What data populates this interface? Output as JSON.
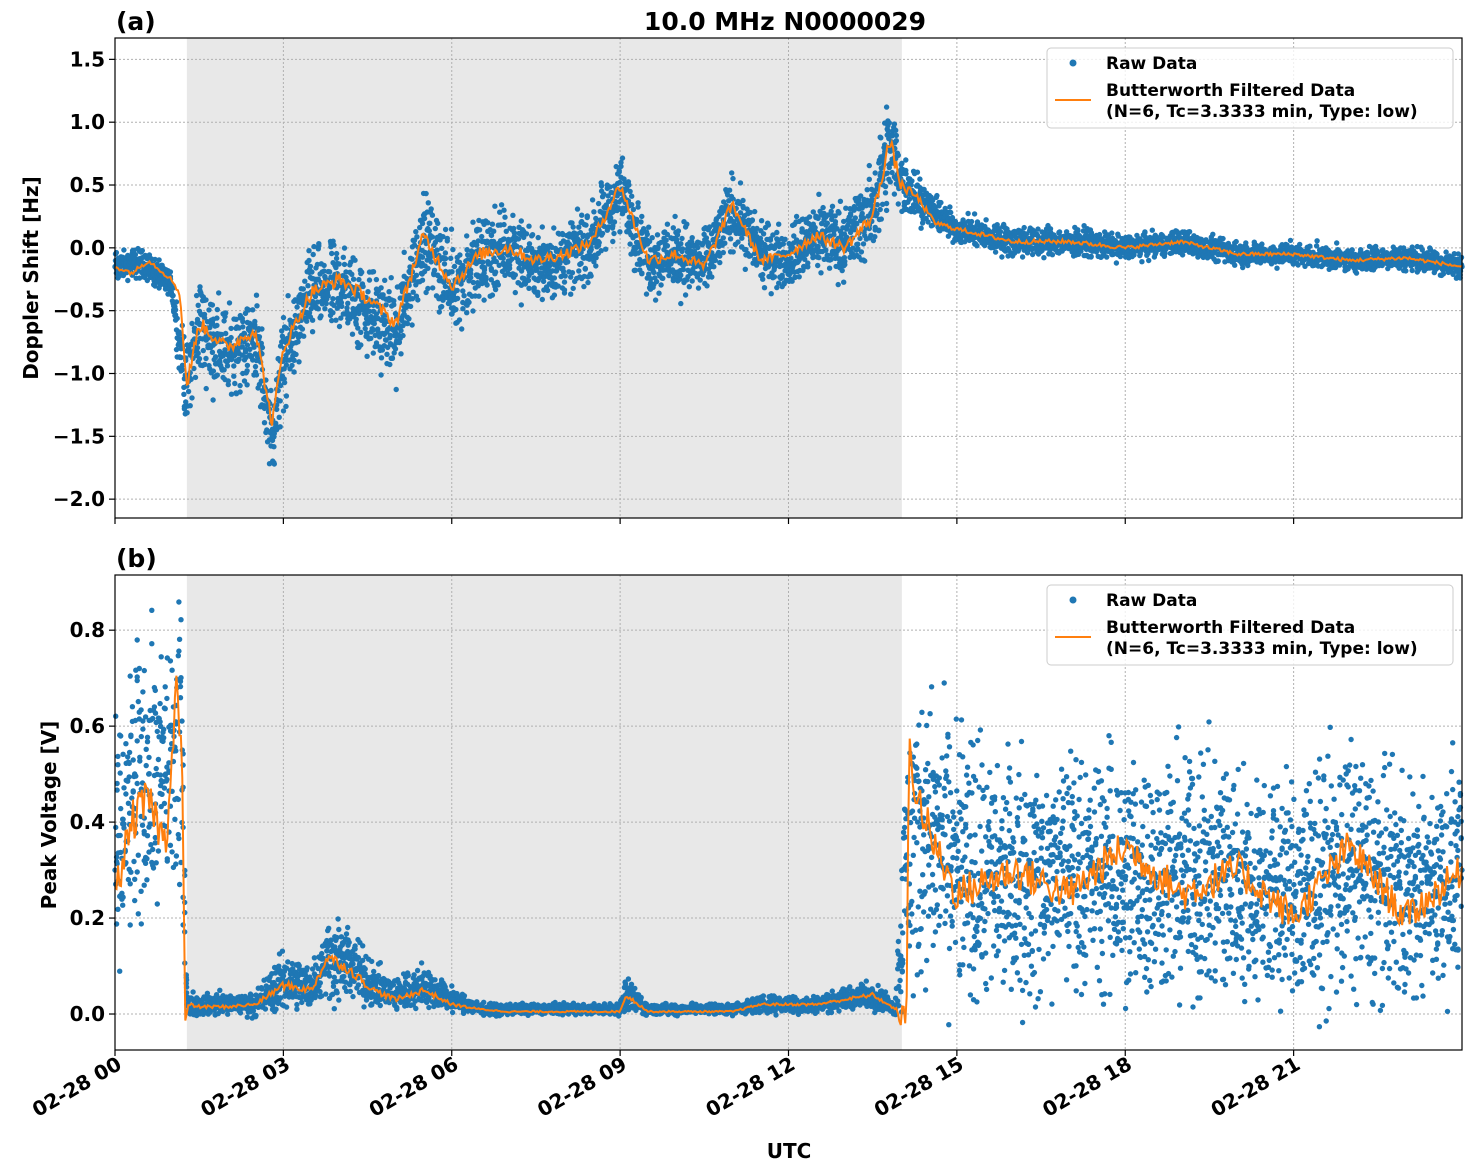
{
  "figure": {
    "suptitle": "10.0 MHz N0000029",
    "xlabel": "UTC",
    "xticks": [
      "02-28 00",
      "02-28 03",
      "02-28 06",
      "02-28 09",
      "02-28 12",
      "02-28 15",
      "02-28 18",
      "02-28 21"
    ]
  },
  "colors": {
    "raw": "#1f77b4",
    "filtered": "#ff7f0e",
    "night_shade": "#e8e8e8",
    "grid": "#b0b0b0"
  },
  "legend": {
    "raw_label": "Raw Data",
    "filtered_label_line1": "Butterworth Filtered Data",
    "filtered_label_line2": "(N=6, Tc=3.3333 min, Type: low)"
  },
  "chart_data": [
    {
      "type": "scatter",
      "panel_label": "(a)",
      "ylabel": "Doppler Shift [Hz]",
      "xlim": [
        0,
        24
      ],
      "ylim": [
        -2.15,
        1.67
      ],
      "yticks": [
        1.5,
        1.0,
        0.5,
        0.0,
        -0.5,
        -1.0,
        -1.5,
        -2.0
      ],
      "ytick_labels": [
        "1.5",
        "1.0",
        "0.5",
        "0.0",
        "−0.5",
        "−1.0",
        "−1.5",
        "−2.0"
      ],
      "shaded_interval_hours": [
        1.28,
        14.02
      ],
      "grid": true,
      "legend_position": "top-right",
      "series": [
        {
          "name": "Raw Data",
          "kind": "points",
          "x": [
            0.0,
            0.5,
            1.0,
            1.28,
            1.5,
            2.0,
            2.5,
            2.8,
            3.0,
            3.5,
            4.0,
            4.5,
            5.0,
            5.5,
            6.0,
            6.5,
            7.0,
            7.5,
            8.0,
            8.5,
            9.0,
            9.5,
            10.0,
            10.5,
            11.0,
            11.5,
            12.0,
            12.5,
            13.0,
            13.5,
            13.8,
            14.0,
            14.5,
            15.0,
            16.0,
            17.0,
            18.0,
            19.0,
            20.0,
            21.0,
            22.0,
            23.0,
            24.0
          ],
          "y": [
            -0.15,
            -0.12,
            -0.3,
            -1.1,
            -0.6,
            -0.85,
            -0.7,
            -1.5,
            -0.9,
            -0.35,
            -0.3,
            -0.5,
            -0.7,
            0.1,
            -0.3,
            -0.1,
            0.0,
            -0.15,
            -0.1,
            0.05,
            0.45,
            -0.1,
            -0.05,
            -0.15,
            0.3,
            -0.05,
            -0.1,
            0.1,
            0.05,
            0.3,
            0.8,
            0.55,
            0.3,
            0.15,
            0.05,
            0.05,
            0.0,
            0.05,
            -0.05,
            -0.05,
            -0.1,
            -0.08,
            -0.15
          ],
          "spread": [
            0.1,
            0.1,
            0.1,
            0.3,
            0.35,
            0.3,
            0.3,
            0.3,
            0.3,
            0.3,
            0.3,
            0.3,
            0.3,
            0.3,
            0.3,
            0.3,
            0.3,
            0.25,
            0.25,
            0.25,
            0.25,
            0.25,
            0.25,
            0.25,
            0.25,
            0.2,
            0.2,
            0.25,
            0.25,
            0.3,
            0.4,
            0.25,
            0.12,
            0.1,
            0.1,
            0.1,
            0.08,
            0.08,
            0.08,
            0.08,
            0.08,
            0.08,
            0.08
          ]
        },
        {
          "name": "Butterworth Filtered Data\n(N=6, Tc=3.3333 min, Type: low)",
          "kind": "line",
          "x": [
            0.0,
            0.3,
            0.6,
            1.0,
            1.15,
            1.28,
            1.5,
            2.0,
            2.5,
            2.8,
            3.0,
            3.5,
            4.0,
            4.5,
            5.0,
            5.5,
            6.0,
            6.5,
            7.0,
            7.5,
            8.0,
            8.5,
            9.0,
            9.5,
            10.0,
            10.5,
            11.0,
            11.5,
            12.0,
            12.5,
            13.0,
            13.5,
            13.8,
            14.0,
            14.3,
            14.6,
            15.0,
            16.0,
            17.0,
            18.0,
            19.0,
            20.0,
            21.0,
            22.0,
            23.0,
            24.0
          ],
          "y": [
            -0.15,
            -0.2,
            -0.1,
            -0.25,
            -0.35,
            -1.1,
            -0.6,
            -0.8,
            -0.65,
            -1.4,
            -0.8,
            -0.35,
            -0.25,
            -0.4,
            -0.6,
            0.1,
            -0.3,
            -0.05,
            0.0,
            -0.1,
            -0.05,
            0.05,
            0.5,
            -0.1,
            -0.05,
            -0.15,
            0.35,
            -0.1,
            -0.05,
            0.1,
            0.0,
            0.25,
            0.85,
            0.5,
            0.4,
            0.2,
            0.15,
            0.05,
            0.05,
            0.0,
            0.05,
            -0.05,
            -0.05,
            -0.1,
            -0.08,
            -0.15
          ]
        }
      ]
    },
    {
      "type": "scatter",
      "panel_label": "(b)",
      "ylabel": "Peak Voltage [V]",
      "xlim": [
        0,
        24
      ],
      "ylim": [
        -0.075,
        0.915
      ],
      "yticks": [
        0.8,
        0.6,
        0.4,
        0.2,
        0.0
      ],
      "ytick_labels": [
        "0.8",
        "0.6",
        "0.4",
        "0.2",
        "0.0"
      ],
      "shaded_interval_hours": [
        1.28,
        14.02
      ],
      "grid": true,
      "legend_position": "top-right",
      "series": [
        {
          "name": "Raw Data",
          "kind": "points",
          "x": [
            0.0,
            0.3,
            0.6,
            0.9,
            1.2,
            1.28,
            1.5,
            2.0,
            2.5,
            3.0,
            3.5,
            3.8,
            4.2,
            4.6,
            5.0,
            5.5,
            6.0,
            6.5,
            7.0,
            8.0,
            9.0,
            9.1,
            9.5,
            10.0,
            11.0,
            11.5,
            12.0,
            12.5,
            13.0,
            13.5,
            13.9,
            14.1,
            14.3,
            15.0,
            16.0,
            17.0,
            18.0,
            19.0,
            20.0,
            21.0,
            22.0,
            23.0,
            24.0
          ],
          "y": [
            0.3,
            0.45,
            0.5,
            0.5,
            0.55,
            0.02,
            0.02,
            0.02,
            0.02,
            0.07,
            0.06,
            0.12,
            0.1,
            0.06,
            0.04,
            0.06,
            0.03,
            0.01,
            0.01,
            0.01,
            0.01,
            0.04,
            0.01,
            0.01,
            0.01,
            0.02,
            0.02,
            0.02,
            0.03,
            0.04,
            0.01,
            0.3,
            0.4,
            0.3,
            0.28,
            0.3,
            0.28,
            0.3,
            0.28,
            0.25,
            0.3,
            0.25,
            0.3
          ],
          "spread": [
            0.2,
            0.25,
            0.25,
            0.25,
            0.25,
            0.02,
            0.02,
            0.02,
            0.02,
            0.05,
            0.04,
            0.07,
            0.06,
            0.04,
            0.03,
            0.04,
            0.02,
            0.01,
            0.01,
            0.01,
            0.01,
            0.03,
            0.01,
            0.01,
            0.01,
            0.015,
            0.015,
            0.015,
            0.02,
            0.025,
            0.01,
            0.25,
            0.25,
            0.22,
            0.22,
            0.22,
            0.22,
            0.22,
            0.22,
            0.2,
            0.22,
            0.2,
            0.2
          ]
        },
        {
          "name": "Butterworth Filtered Data\n(N=6, Tc=3.3333 min, Type: low)",
          "kind": "line",
          "x": [
            0.0,
            0.3,
            0.6,
            0.9,
            1.1,
            1.2,
            1.25,
            1.3,
            1.5,
            2.0,
            2.5,
            3.0,
            3.5,
            3.8,
            4.2,
            4.6,
            5.0,
            5.5,
            6.0,
            6.5,
            7.0,
            8.0,
            9.0,
            9.1,
            9.5,
            10.0,
            11.0,
            11.5,
            12.0,
            12.5,
            13.0,
            13.5,
            13.9,
            14.1,
            14.15,
            14.3,
            14.6,
            15.0,
            16.0,
            17.0,
            18.0,
            19.0,
            20.0,
            21.0,
            22.0,
            23.0,
            24.0
          ],
          "y": [
            0.25,
            0.4,
            0.45,
            0.35,
            0.7,
            0.5,
            -0.03,
            0.02,
            0.015,
            0.015,
            0.02,
            0.06,
            0.05,
            0.12,
            0.09,
            0.05,
            0.03,
            0.05,
            0.02,
            0.01,
            0.005,
            0.005,
            0.005,
            0.04,
            0.005,
            0.005,
            0.005,
            0.02,
            0.02,
            0.02,
            0.03,
            0.04,
            0.01,
            -0.02,
            0.55,
            0.45,
            0.35,
            0.25,
            0.3,
            0.25,
            0.35,
            0.25,
            0.3,
            0.2,
            0.35,
            0.2,
            0.3
          ]
        }
      ]
    }
  ]
}
